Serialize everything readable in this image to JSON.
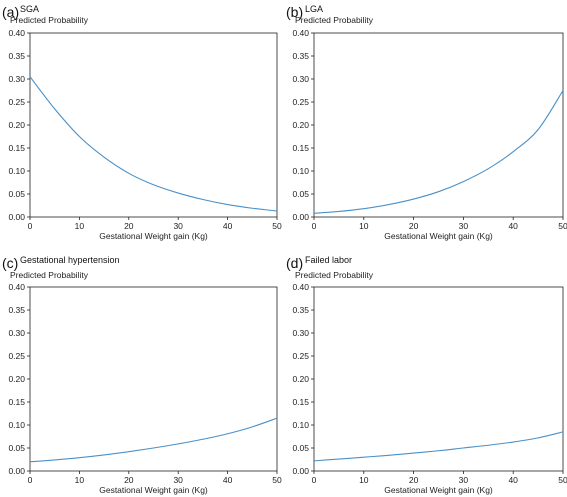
{
  "colors": {
    "line": "#4a90c8",
    "axis": "#222222"
  },
  "chart_data": [
    {
      "type": "line",
      "panel_letter": "(a)",
      "title": "SGA",
      "ylabel": "Predicted Probability",
      "xlabel": "Gestational Weight gain (Kg)",
      "xlim": [
        0,
        50
      ],
      "ylim": [
        0,
        0.4
      ],
      "xticks": [
        "0",
        "10",
        "20",
        "30",
        "40",
        "50"
      ],
      "yticks": [
        "0.00",
        "0.05",
        "0.10",
        "0.15",
        "0.20",
        "0.25",
        "0.30",
        "0.35",
        "0.40"
      ],
      "x": [
        0,
        5,
        10,
        15,
        20,
        25,
        30,
        35,
        40,
        45,
        50
      ],
      "y": [
        0.305,
        0.235,
        0.175,
        0.13,
        0.095,
        0.07,
        0.052,
        0.038,
        0.027,
        0.019,
        0.013
      ],
      "grid": false
    },
    {
      "type": "line",
      "panel_letter": "(b)",
      "title": "LGA",
      "ylabel": "Predicted Probability",
      "xlabel": "Gestational Weight gain (Kg)",
      "xlim": [
        0,
        50
      ],
      "ylim": [
        0,
        0.4
      ],
      "xticks": [
        "0",
        "10",
        "20",
        "30",
        "40",
        "50"
      ],
      "yticks": [
        "0.00",
        "0.05",
        "0.10",
        "0.15",
        "0.20",
        "0.25",
        "0.30",
        "0.35",
        "0.40"
      ],
      "x": [
        0,
        5,
        10,
        15,
        20,
        25,
        30,
        35,
        40,
        45,
        50
      ],
      "y": [
        0.008,
        0.012,
        0.018,
        0.027,
        0.039,
        0.055,
        0.077,
        0.105,
        0.142,
        0.19,
        0.275
      ],
      "grid": false
    },
    {
      "type": "line",
      "panel_letter": "(c)",
      "title": "Gestational hypertension",
      "ylabel": "Predicted Probability",
      "xlabel": "Gestational Weight gain (Kg)",
      "xlim": [
        0,
        50
      ],
      "ylim": [
        0,
        0.4
      ],
      "xticks": [
        "0",
        "10",
        "20",
        "30",
        "40",
        "50"
      ],
      "yticks": [
        "0.00",
        "0.05",
        "0.10",
        "0.15",
        "0.20",
        "0.25",
        "0.30",
        "0.35",
        "0.40"
      ],
      "x": [
        0,
        5,
        10,
        15,
        20,
        25,
        30,
        35,
        40,
        45,
        50
      ],
      "y": [
        0.02,
        0.024,
        0.029,
        0.035,
        0.042,
        0.05,
        0.059,
        0.069,
        0.081,
        0.096,
        0.115
      ],
      "grid": false
    },
    {
      "type": "line",
      "panel_letter": "(d)",
      "title": "Failed labor",
      "ylabel": "Predicted Probability",
      "xlabel": "Gestational Weight gain (Kg)",
      "xlim": [
        0,
        50
      ],
      "ylim": [
        0,
        0.4
      ],
      "xticks": [
        "0",
        "10",
        "20",
        "30",
        "40",
        "50"
      ],
      "yticks": [
        "0.00",
        "0.05",
        "0.10",
        "0.15",
        "0.20",
        "0.25",
        "0.30",
        "0.35",
        "0.40"
      ],
      "x": [
        0,
        5,
        10,
        15,
        20,
        25,
        30,
        35,
        40,
        45,
        50
      ],
      "y": [
        0.022,
        0.026,
        0.03,
        0.034,
        0.039,
        0.044,
        0.05,
        0.056,
        0.063,
        0.072,
        0.085
      ],
      "grid": false
    }
  ]
}
